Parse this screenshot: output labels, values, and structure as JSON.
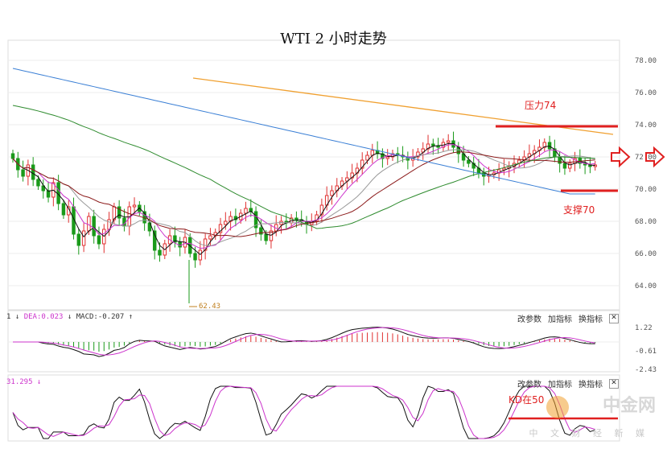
{
  "title": "WTI 2 小时走势",
  "chart_data": {
    "type": "candlestick",
    "title": "WTI 2 小时走势",
    "ylim": [
      62.5,
      79.0
    ],
    "yticks": [
      "78.00",
      "76.00",
      "74.00",
      "72.00",
      "70.00",
      "68.00",
      "66.00",
      "64.00"
    ],
    "low_label": "62.43",
    "annotations": {
      "resistance": {
        "label": "压力74",
        "value": 73.9
      },
      "support": {
        "label": "支撑70",
        "value": 70.0
      }
    },
    "trend_line": {
      "start": 76.9,
      "end": 73.4
    },
    "colors": {
      "up": "#e03030",
      "down": "#1a9a1a",
      "ma_black": "#111111",
      "ma_magenta": "#cc33cc",
      "ma_grey": "#999999",
      "ma_darkred": "#8b1a1a",
      "ma_green": "#2e8b2e",
      "ma_blue": "#3a7fd5",
      "trend": "#f0a030",
      "annot": "#e02020"
    },
    "closes": [
      71.9,
      71.2,
      70.8,
      71.5,
      70.6,
      70.2,
      69.9,
      69.5,
      70.4,
      69.1,
      68.4,
      68.9,
      67.2,
      66.5,
      67.4,
      68.3,
      67.1,
      66.6,
      67.5,
      68.1,
      68.9,
      68.2,
      67.7,
      68.9,
      69.0,
      68.6,
      67.9,
      67.4,
      66.2,
      65.9,
      66.6,
      67.1,
      66.7,
      66.4,
      67.0,
      66.0,
      65.6,
      66.2,
      66.9,
      67.1,
      67.3,
      67.8,
      68.0,
      68.3,
      68.1,
      68.5,
      68.8,
      68.6,
      67.6,
      67.2,
      66.8,
      67.4,
      67.8,
      68.0,
      67.9,
      68.2,
      68.1,
      68.0,
      67.8,
      68.0,
      68.4,
      69.0,
      69.6,
      69.9,
      70.2,
      70.5,
      70.7,
      71.0,
      71.3,
      71.8,
      72.1,
      72.4,
      72.2,
      71.9,
      72.0,
      72.2,
      72.1,
      72.0,
      71.8,
      72.0,
      72.3,
      72.5,
      72.8,
      72.7,
      72.6,
      72.9,
      73.0,
      72.6,
      72.2,
      71.8,
      71.6,
      71.3,
      71.0,
      70.8,
      70.9,
      71.0,
      71.2,
      71.3,
      71.4,
      71.6,
      71.8,
      72.0,
      72.2,
      72.4,
      72.6,
      72.9,
      72.5,
      72.0,
      71.6,
      71.3,
      71.6,
      71.9,
      71.6,
      71.5,
      71.4,
      71.5
    ]
  },
  "macd_panel": {
    "label": "DEA:0.023",
    "label2": "MACD:-0.207",
    "prefix": "1",
    "ticks": [
      "1.22",
      "-0.61",
      "-2.43"
    ]
  },
  "kd_panel": {
    "label": "31.295",
    "annotation": "KD在50"
  },
  "buttons": [
    "改参数",
    "加指标",
    "换指标",
    "✕"
  ],
  "watermark": "中金网",
  "watermark_sub": "中 文 财 经 新 媒"
}
